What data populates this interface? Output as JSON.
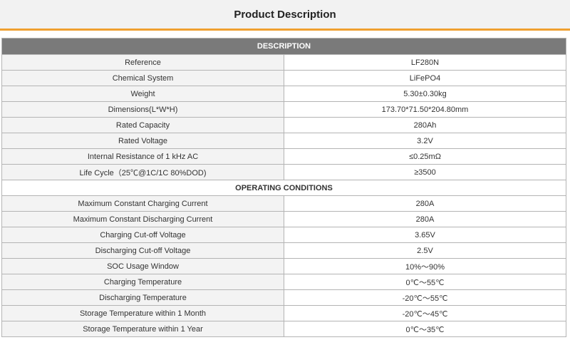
{
  "page": {
    "title": "Product Description",
    "accent_color": "#f0a030",
    "header_bg": "#7a7a7a"
  },
  "table": {
    "description_header": "DESCRIPTION",
    "description_rows": [
      {
        "param": "Reference",
        "value": "LF280N"
      },
      {
        "param": "Chemical System",
        "value": "LiFePO4"
      },
      {
        "param": "Weight",
        "value": "5.30±0.30kg"
      },
      {
        "param": "Dimensions(L*W*H)",
        "value": "173.70*71.50*204.80mm"
      },
      {
        "param": "Rated Capacity",
        "value": "280Ah"
      },
      {
        "param": "Rated Voltage",
        "value": "3.2V"
      },
      {
        "param": "Internal Resistance of 1 kHz AC",
        "value": "≤0.25mΩ"
      },
      {
        "param": "Life Cycle（25℃@1C/1C 80%DOD)",
        "value": "≥3500"
      }
    ],
    "operating_header": "OPERATING CONDITIONS",
    "operating_rows": [
      {
        "param": "Maximum Constant Charging Current",
        "value": "280A"
      },
      {
        "param": "Maximum Constant Discharging Current",
        "value": "280A"
      },
      {
        "param": "Charging Cut-off Voltage",
        "value": "3.65V"
      },
      {
        "param": "Discharging Cut-off Voltage",
        "value": "2.5V"
      },
      {
        "param": "SOC Usage Window",
        "value": "10%～90%"
      },
      {
        "param": "Charging Temperature",
        "value": "0℃～55℃"
      },
      {
        "param": "Discharging Temperature",
        "value": "-20℃～55℃"
      },
      {
        "param": "Storage Temperature within 1 Month",
        "value": "-20℃～45℃"
      },
      {
        "param": "Storage Temperature within 1 Year",
        "value": "0℃～35℃"
      }
    ]
  }
}
